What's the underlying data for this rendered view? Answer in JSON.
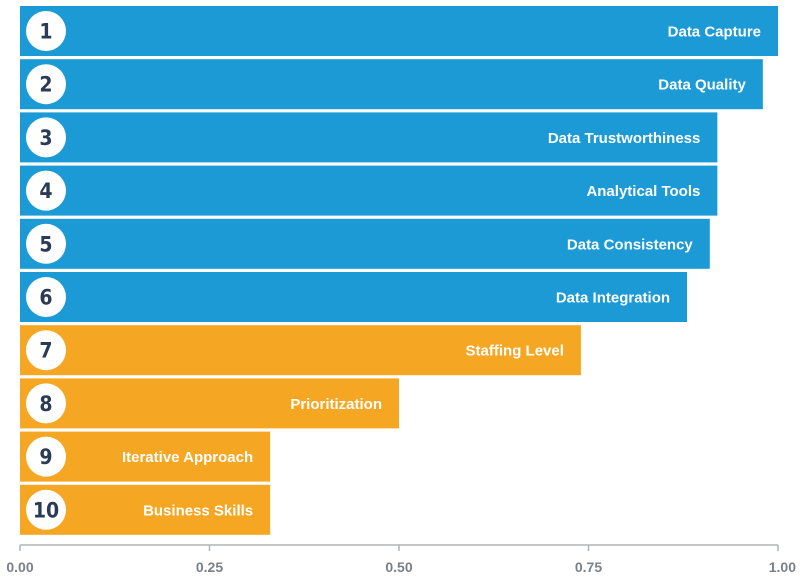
{
  "colors": {
    "primary_group": "#1b9ad6",
    "secondary_group": "#f5a623",
    "rank_circle": "#ffffff",
    "rank_text": "#2b3a55",
    "axis": "#b0b4b8"
  },
  "chart_data": {
    "type": "bar",
    "orientation": "horizontal",
    "categories": [
      "Data Capture",
      "Data Quality",
      "Data Trustworthiness",
      "Analytical Tools",
      "Data Consistency",
      "Data Integration",
      "Staffing Level",
      "Prioritization",
      "Iterative Approach",
      "Business Skills"
    ],
    "ranks": [
      "1",
      "2",
      "3",
      "4",
      "5",
      "6",
      "7",
      "8",
      "9",
      "10"
    ],
    "values": [
      1.0,
      0.98,
      0.92,
      0.92,
      0.91,
      0.88,
      0.74,
      0.5,
      0.33,
      0.33
    ],
    "groups": [
      "primary",
      "primary",
      "primary",
      "primary",
      "primary",
      "primary",
      "secondary",
      "secondary",
      "secondary",
      "secondary"
    ],
    "xlim": [
      0,
      1
    ],
    "xticks": [
      "0.00",
      "0.25",
      "0.50",
      "0.75",
      "1.00"
    ],
    "title": "",
    "xlabel": "",
    "ylabel": "",
    "grid": false,
    "legend": "none"
  }
}
